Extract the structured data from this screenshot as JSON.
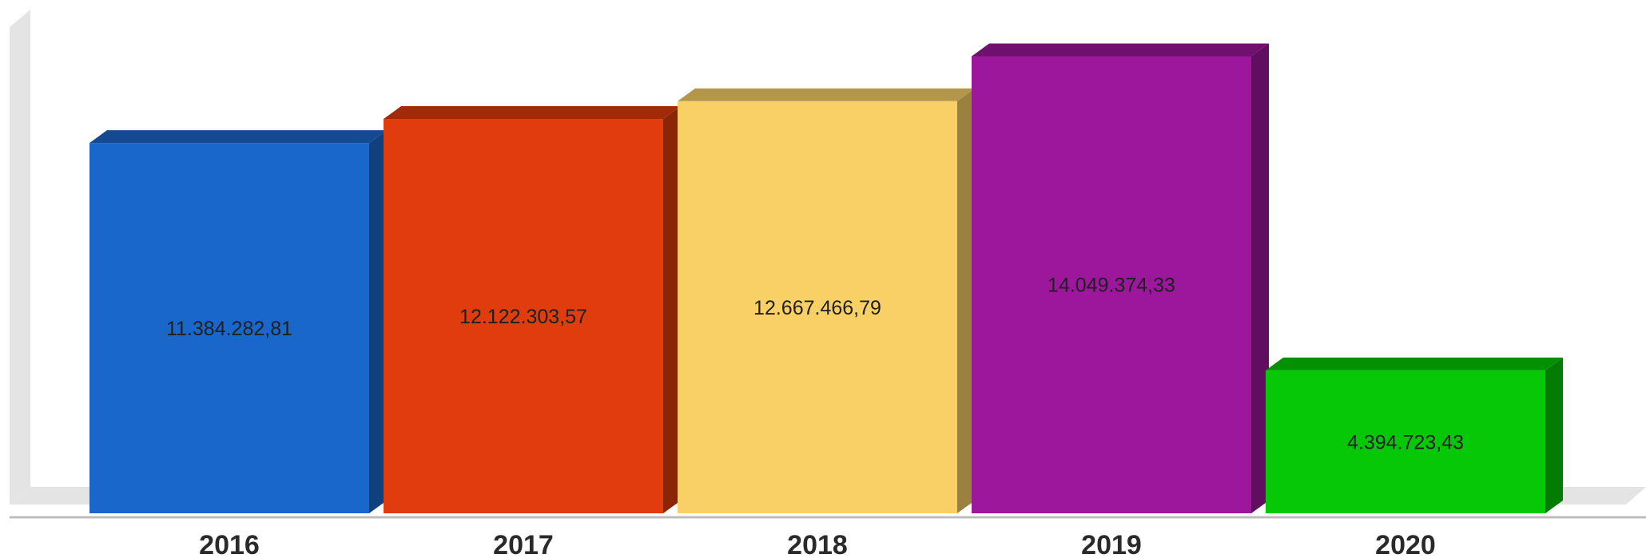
{
  "chart_data": {
    "type": "bar",
    "style": "3d",
    "categories": [
      "2016",
      "2017",
      "2018",
      "2019",
      "2020"
    ],
    "values": [
      11384282.81,
      12122303.57,
      12667466.79,
      14049374.33,
      4394723.43
    ],
    "value_labels": [
      "11.384.282,81",
      "12.122.303,57",
      "12.667.466,79",
      "14.049.374,33",
      "4.394.723,43"
    ],
    "colors": [
      "#1a67cb",
      "#e03c0d",
      "#f8d066",
      "#9c179c",
      "#06c806"
    ],
    "ylim": [
      0,
      15000000
    ],
    "grid": false,
    "legend": "none",
    "title": "",
    "xlabel": "",
    "ylabel": ""
  }
}
